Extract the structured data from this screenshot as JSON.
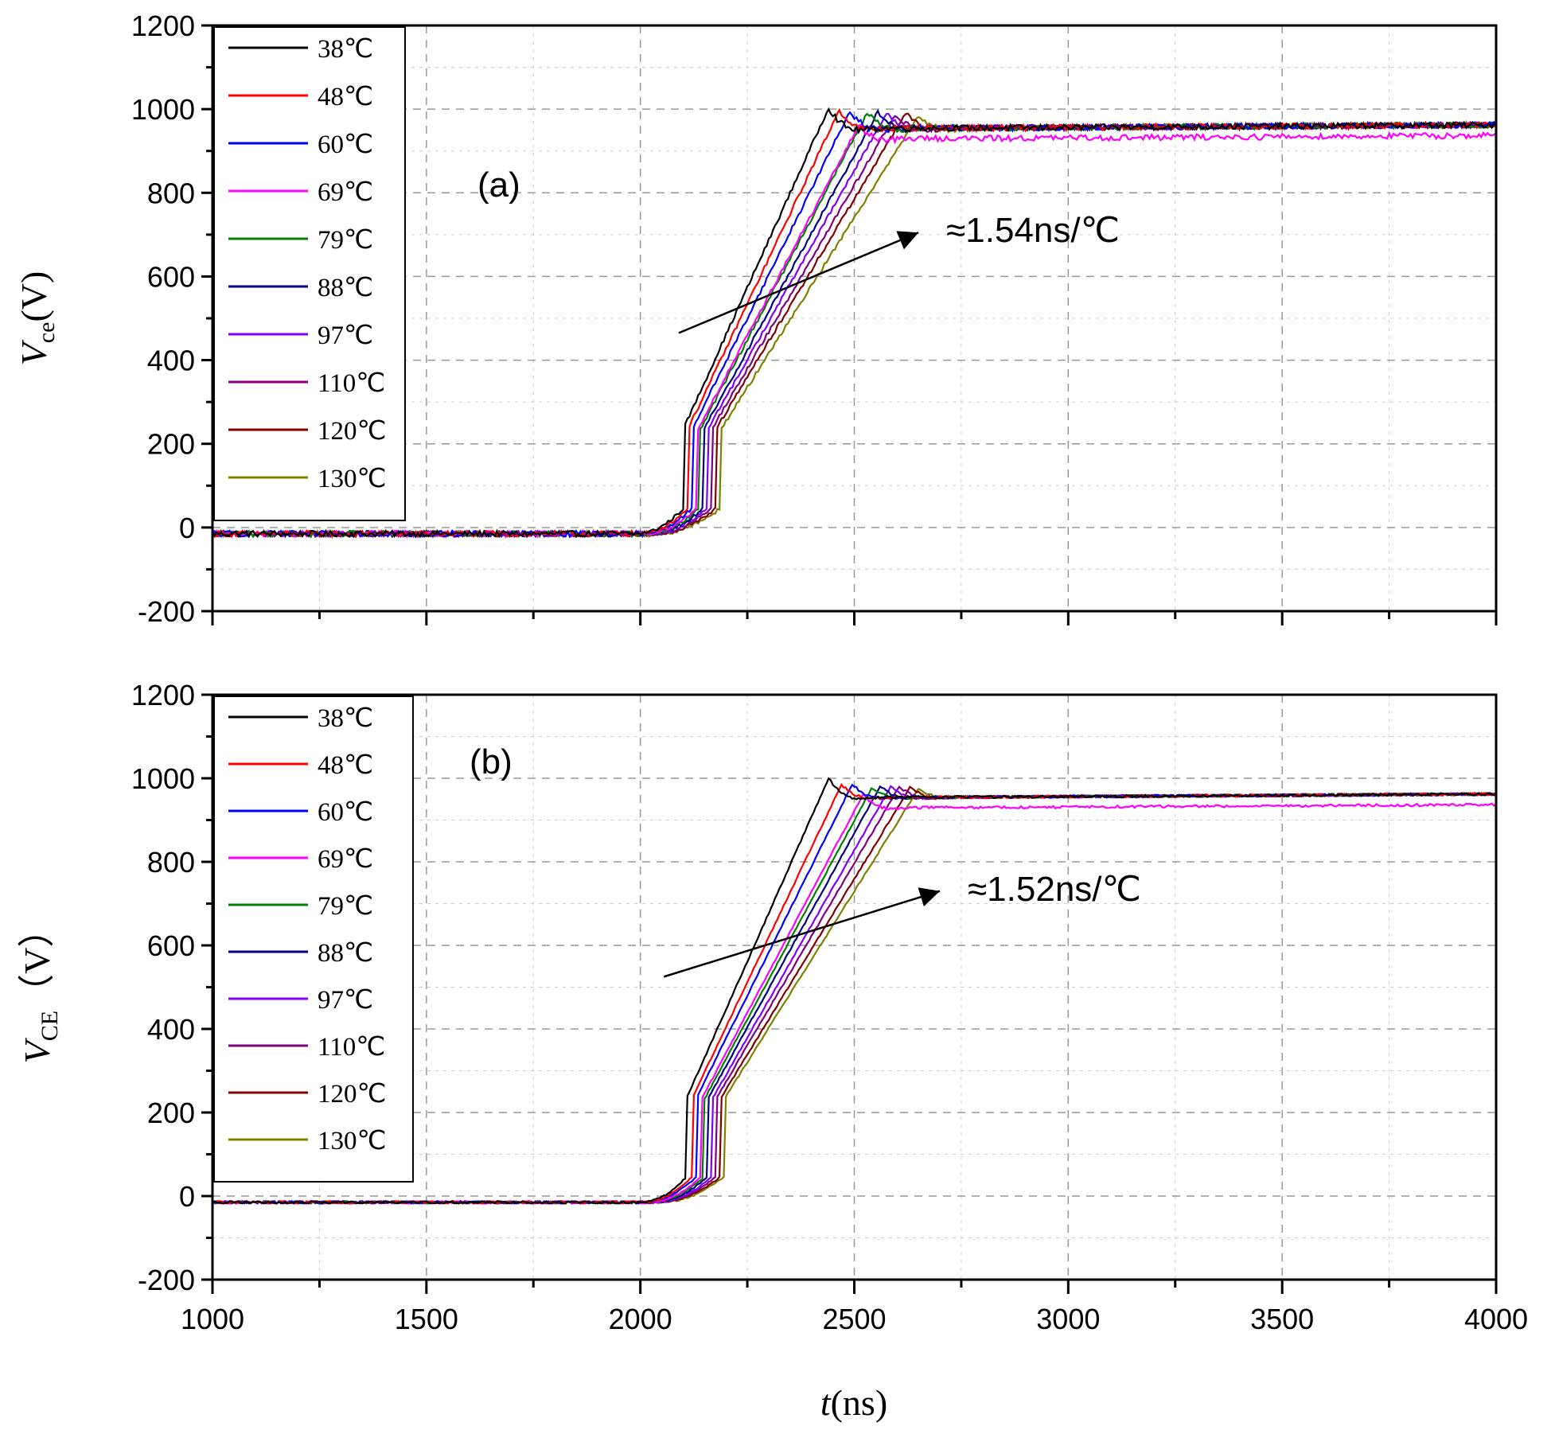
{
  "chart_data": [
    {
      "type": "line",
      "panel_label": "(a)",
      "ylabel": {
        "main": "V",
        "sub": "ce",
        "unit": "(V)"
      },
      "xlabel": {
        "main": "t",
        "unit": "(ns)"
      },
      "xlim": [
        1000,
        4000
      ],
      "ylim": [
        -200,
        1200
      ],
      "xticks": [
        1000,
        1500,
        2000,
        2500,
        3000,
        3500,
        4000
      ],
      "yticks": [
        -200,
        0,
        200,
        400,
        600,
        800,
        1000,
        1200
      ],
      "grid": true,
      "legend_position": "top-left",
      "annotation": {
        "text": "≈1.54ns/℃",
        "arrow_from": [
          2090,
          465
        ],
        "arrow_to": [
          2650,
          705
        ]
      },
      "series": [
        {
          "name": "38℃",
          "color": "#000000",
          "rise_start": 1990,
          "rise_end": 2440,
          "peak": 1003,
          "settle": 955
        },
        {
          "name": "48℃",
          "color": "#ff0000",
          "rise_start": 1995,
          "rise_end": 2465,
          "peak": 998,
          "settle": 955
        },
        {
          "name": "60℃",
          "color": "#0000ff",
          "rise_start": 2000,
          "rise_end": 2490,
          "peak": 995,
          "settle": 955
        },
        {
          "name": "69℃",
          "color": "#ff00ff",
          "rise_start": 2005,
          "rise_end": 2510,
          "peak": 960,
          "settle": 930
        },
        {
          "name": "79℃",
          "color": "#008000",
          "rise_start": 2010,
          "rise_end": 2530,
          "peak": 990,
          "settle": 955
        },
        {
          "name": "88℃",
          "color": "#000080",
          "rise_start": 2015,
          "rise_end": 2555,
          "peak": 993,
          "settle": 955
        },
        {
          "name": "97℃",
          "color": "#8000ff",
          "rise_start": 2020,
          "rise_end": 2575,
          "peak": 990,
          "settle": 955
        },
        {
          "name": "110℃",
          "color": "#800080",
          "rise_start": 2025,
          "rise_end": 2595,
          "peak": 985,
          "settle": 955
        },
        {
          "name": "120℃",
          "color": "#800000",
          "rise_start": 2030,
          "rise_end": 2620,
          "peak": 990,
          "settle": 955
        },
        {
          "name": "130℃",
          "color": "#808000",
          "rise_start": 2035,
          "rise_end": 2650,
          "peak": 985,
          "settle": 955
        }
      ]
    },
    {
      "type": "line",
      "panel_label": "(b)",
      "ylabel": {
        "main": "V",
        "sub": "CE",
        "unit": "（V）"
      },
      "xlabel": {
        "main": "t",
        "unit": "(ns)"
      },
      "xlim": [
        1000,
        4000
      ],
      "ylim": [
        -200,
        1200
      ],
      "xticks": [
        1000,
        1500,
        2000,
        2500,
        3000,
        3500,
        4000
      ],
      "yticks": [
        -200,
        0,
        200,
        400,
        600,
        800,
        1000,
        1200
      ],
      "grid": true,
      "legend_position": "top-left",
      "annotation": {
        "text": "≈1.52ns/℃",
        "arrow_from": [
          2055,
          525
        ],
        "arrow_to": [
          2700,
          730
        ]
      },
      "series": [
        {
          "name": "38℃",
          "color": "#000000",
          "rise_start": 2000,
          "rise_end": 2440,
          "peak": 1000,
          "settle": 955
        },
        {
          "name": "48℃",
          "color": "#ff0000",
          "rise_start": 2005,
          "rise_end": 2470,
          "peak": 985,
          "settle": 955
        },
        {
          "name": "60℃",
          "color": "#0000ff",
          "rise_start": 2010,
          "rise_end": 2495,
          "peak": 985,
          "settle": 955
        },
        {
          "name": "69℃",
          "color": "#ff00ff",
          "rise_start": 2015,
          "rise_end": 2520,
          "peak": 960,
          "settle": 930
        },
        {
          "name": "79℃",
          "color": "#008000",
          "rise_start": 2020,
          "rise_end": 2540,
          "peak": 975,
          "settle": 955
        },
        {
          "name": "88℃",
          "color": "#000080",
          "rise_start": 2025,
          "rise_end": 2560,
          "peak": 980,
          "settle": 955
        },
        {
          "name": "97℃",
          "color": "#8000ff",
          "rise_start": 2030,
          "rise_end": 2585,
          "peak": 980,
          "settle": 955
        },
        {
          "name": "110℃",
          "color": "#800080",
          "rise_start": 2035,
          "rise_end": 2605,
          "peak": 980,
          "settle": 955
        },
        {
          "name": "120℃",
          "color": "#800000",
          "rise_start": 2040,
          "rise_end": 2630,
          "peak": 978,
          "settle": 955
        },
        {
          "name": "130℃",
          "color": "#808000",
          "rise_start": 2045,
          "rise_end": 2650,
          "peak": 975,
          "settle": 955
        }
      ]
    }
  ]
}
